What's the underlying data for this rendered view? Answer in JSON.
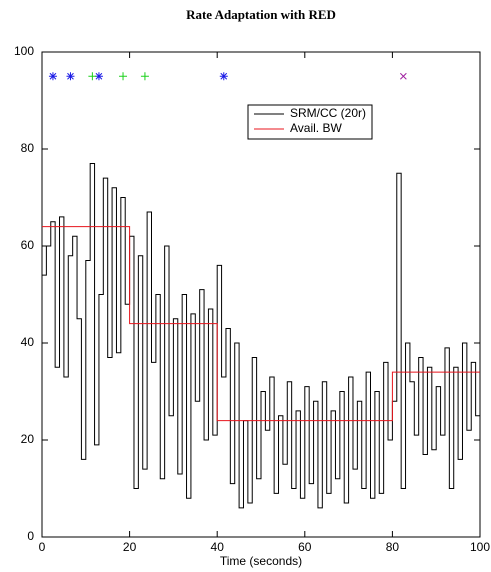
{
  "chart_data": {
    "type": "line",
    "title": "Rate Adaptation with RED",
    "xlabel": "Time (seconds)",
    "step": true,
    "xlim": [
      0,
      100
    ],
    "ylim": [
      0,
      100
    ],
    "xticks": [
      0,
      20,
      40,
      60,
      80,
      100
    ],
    "yticks": [
      0,
      20,
      40,
      60,
      80,
      100
    ],
    "legend": "upper right",
    "series": [
      {
        "name": "SRM/CC (20r)",
        "color": "#000000",
        "x": [
          0,
          1,
          2,
          3,
          4,
          5,
          6,
          7,
          8,
          9,
          10,
          11,
          12,
          13,
          14,
          15,
          16,
          17,
          18,
          19,
          20,
          21,
          22,
          23,
          24,
          25,
          26,
          27,
          28,
          29,
          30,
          31,
          32,
          33,
          34,
          35,
          36,
          37,
          38,
          39,
          40,
          41,
          42,
          43,
          44,
          45,
          46,
          47,
          48,
          49,
          50,
          51,
          52,
          53,
          54,
          55,
          56,
          57,
          58,
          59,
          60,
          61,
          62,
          63,
          64,
          65,
          66,
          67,
          68,
          69,
          70,
          71,
          72,
          73,
          74,
          75,
          76,
          77,
          78,
          79,
          80,
          81,
          82,
          83,
          84,
          85,
          86,
          87,
          88,
          89,
          90,
          91,
          92,
          93,
          94,
          95,
          96,
          97,
          98,
          99,
          100
        ],
        "values": [
          54,
          60,
          65,
          35,
          66,
          33,
          58,
          62,
          45,
          16,
          57,
          77,
          19,
          50,
          74,
          37,
          72,
          38,
          70,
          48,
          62,
          10,
          58,
          14,
          67,
          36,
          50,
          12,
          60,
          25,
          45,
          13,
          50,
          8,
          46,
          28,
          51,
          20,
          47,
          21,
          56,
          33,
          43,
          11,
          40,
          6,
          24,
          7,
          37,
          12,
          30,
          22,
          33,
          9,
          25,
          15,
          32,
          10,
          26,
          8,
          31,
          11,
          28,
          6,
          32,
          9,
          26,
          12,
          30,
          7,
          33,
          14,
          28,
          10,
          34,
          8,
          30,
          9,
          36,
          20,
          28,
          75,
          10,
          40,
          32,
          21,
          37,
          17,
          35,
          18,
          31,
          21,
          39,
          10,
          35,
          16,
          40,
          22,
          36,
          25,
          40
        ]
      },
      {
        "name": "Avail. BW",
        "color": "#e8141c",
        "x": [
          0,
          20,
          20,
          40,
          40,
          80,
          80,
          100
        ],
        "values": [
          64,
          64,
          44,
          44,
          24,
          24,
          34,
          34
        ]
      }
    ],
    "markers": [
      {
        "symbol": "star",
        "color": "#1a1ae6",
        "x": [
          2.5,
          6.5,
          13,
          41.5
        ],
        "values": [
          95,
          95,
          95,
          95
        ]
      },
      {
        "symbol": "plus",
        "color": "#1ad01a",
        "x": [
          11.5,
          18.5,
          23.5
        ],
        "values": [
          95,
          95,
          95
        ]
      },
      {
        "symbol": "cross",
        "color": "#a020a0",
        "x": [
          82.5
        ],
        "values": [
          95
        ]
      }
    ]
  }
}
